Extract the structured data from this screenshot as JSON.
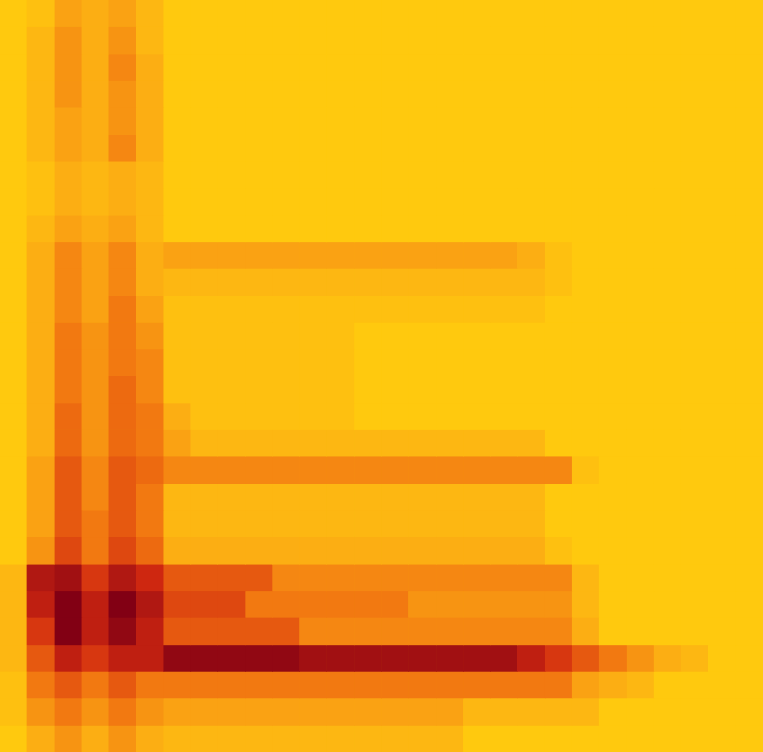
{
  "chart_data": {
    "type": "heatmap",
    "tick_labels": false,
    "grid": false,
    "cells": [
      [
        0.5,
        1,
        2.5,
        2,
        2.5,
        1.5,
        0.5,
        0.5,
        0.5,
        0.5,
        0.5,
        0.5,
        0.5,
        0.5,
        0.5,
        0.5,
        0.5,
        0.5,
        0.5,
        0.5,
        0.5,
        0.5,
        0.5,
        0.5,
        0.5,
        0.5,
        0.5,
        0.5
      ],
      [
        0.5,
        1.5,
        3,
        2,
        3,
        1.5,
        0.5,
        0.5,
        0.5,
        0.5,
        0.5,
        0.5,
        0.5,
        0.5,
        0.5,
        0.5,
        0.5,
        0.5,
        0.5,
        0.5,
        0.5,
        0.5,
        0.5,
        0.5,
        0.5,
        0.5,
        0.5,
        0.5
      ],
      [
        0.5,
        1.5,
        3,
        2,
        3.5,
        2,
        0.5,
        0.5,
        0.5,
        0.5,
        0.5,
        0.5,
        0.5,
        0.5,
        0.5,
        0.5,
        0.5,
        0.5,
        0.5,
        0.5,
        0.5,
        0.5,
        0.5,
        0.5,
        0.5,
        0.5,
        0.5,
        0.5
      ],
      [
        0.5,
        1.5,
        3,
        2,
        3,
        2,
        0.5,
        0.5,
        0.5,
        0.5,
        0.5,
        0.5,
        0.5,
        0.5,
        0.5,
        0.5,
        0.5,
        0.5,
        0.5,
        0.5,
        0.5,
        0.5,
        0.5,
        0.5,
        0.5,
        0.5,
        0.5,
        0.5
      ],
      [
        0.5,
        1.5,
        2.5,
        2,
        3,
        2,
        0.5,
        0.5,
        0.5,
        0.5,
        0.5,
        0.5,
        0.5,
        0.5,
        0.5,
        0.5,
        0.5,
        0.5,
        0.5,
        0.5,
        0.5,
        0.5,
        0.5,
        0.5,
        0.5,
        0.5,
        0.5,
        0.5
      ],
      [
        0.5,
        1.5,
        2.5,
        2,
        3.5,
        2,
        0.5,
        0.5,
        0.5,
        0.5,
        0.5,
        0.5,
        0.5,
        0.5,
        0.5,
        0.5,
        0.5,
        0.5,
        0.5,
        0.5,
        0.5,
        0.5,
        0.5,
        0.5,
        0.5,
        0.5,
        0.5,
        0.5
      ],
      [
        0.5,
        1,
        2,
        1.5,
        2,
        1.5,
        0.5,
        0.5,
        0.5,
        0.5,
        0.5,
        0.5,
        0.5,
        0.5,
        0.5,
        0.5,
        0.5,
        0.5,
        0.5,
        0.5,
        0.5,
        0.5,
        0.5,
        0.5,
        0.5,
        0.5,
        0.5,
        0.5
      ],
      [
        0.5,
        1,
        2,
        1.5,
        2,
        1.5,
        0.5,
        0.5,
        0.5,
        0.5,
        0.5,
        0.5,
        0.5,
        0.5,
        0.5,
        0.5,
        0.5,
        0.5,
        0.5,
        0.5,
        0.5,
        0.5,
        0.5,
        0.5,
        0.5,
        0.5,
        0.5,
        0.5
      ],
      [
        0.5,
        1.5,
        2.5,
        2,
        2.5,
        1.5,
        0.5,
        0.5,
        0.5,
        0.5,
        0.5,
        0.5,
        0.5,
        0.5,
        0.5,
        0.5,
        0.5,
        0.5,
        0.5,
        0.5,
        0.5,
        0.5,
        0.5,
        0.5,
        0.5,
        0.5,
        0.5,
        0.5
      ],
      [
        0.5,
        2,
        3.5,
        2.5,
        3.5,
        2,
        2.5,
        2.5,
        2.5,
        2.5,
        2.5,
        2.5,
        2.5,
        2.5,
        2.5,
        2.5,
        2.5,
        2.5,
        2.5,
        2,
        1,
        0.5,
        0.5,
        0.5,
        0.5,
        0.5,
        0.5,
        0.5
      ],
      [
        0.5,
        2,
        3.5,
        2.5,
        3.5,
        2,
        1.5,
        1.5,
        1.5,
        1.5,
        1.5,
        1.5,
        1.5,
        1.5,
        1.5,
        1.5,
        1.5,
        1.5,
        1.5,
        1.5,
        1,
        0.5,
        0.5,
        0.5,
        0.5,
        0.5,
        0.5,
        0.5
      ],
      [
        0.5,
        2,
        3.5,
        2.5,
        4,
        2.5,
        1,
        1,
        1,
        1,
        1,
        1,
        1,
        1,
        1,
        1,
        1,
        1,
        1,
        1,
        0.5,
        0.5,
        0.5,
        0.5,
        0.5,
        0.5,
        0.5,
        0.5
      ],
      [
        0.5,
        2,
        4,
        3,
        4,
        3,
        1,
        1,
        1,
        1,
        1,
        1,
        1,
        0.5,
        0.5,
        0.5,
        0.5,
        0.5,
        0.5,
        0.5,
        0.5,
        0.5,
        0.5,
        0.5,
        0.5,
        0.5,
        0.5,
        0.5
      ],
      [
        0.5,
        2,
        4,
        3,
        4,
        3.5,
        1,
        1,
        1,
        1,
        1,
        1,
        1,
        0.5,
        0.5,
        0.5,
        0.5,
        0.5,
        0.5,
        0.5,
        0.5,
        0.5,
        0.5,
        0.5,
        0.5,
        0.5,
        0.5,
        0.5
      ],
      [
        0.5,
        2,
        4,
        3,
        4.5,
        3.5,
        1,
        1,
        1,
        1,
        1,
        1,
        1,
        0.5,
        0.5,
        0.5,
        0.5,
        0.5,
        0.5,
        0.5,
        0.5,
        0.5,
        0.5,
        0.5,
        0.5,
        0.5,
        0.5,
        0.5
      ],
      [
        0.5,
        2,
        4.5,
        3,
        4.5,
        4,
        2,
        1,
        1,
        1,
        1,
        1,
        1,
        0.5,
        0.5,
        0.5,
        0.5,
        0.5,
        0.5,
        0.5,
        0.5,
        0.5,
        0.5,
        0.5,
        0.5,
        0.5,
        0.5,
        0.5
      ],
      [
        0.5,
        2,
        4.5,
        3,
        4.5,
        4,
        2.5,
        1.5,
        1.5,
        1.5,
        1.5,
        1.5,
        1.5,
        1.5,
        1.5,
        1.5,
        1.5,
        1.5,
        1.5,
        1.5,
        0.5,
        0.5,
        0.5,
        0.5,
        0.5,
        0.5,
        0.5,
        0.5
      ],
      [
        0.5,
        2.5,
        5,
        3.5,
        5,
        4.5,
        3.5,
        3.5,
        3.5,
        3.5,
        3.5,
        3.5,
        3.5,
        3.5,
        3.5,
        3.5,
        3.5,
        3.5,
        3.5,
        3.5,
        3.5,
        1,
        0.5,
        0.5,
        0.5,
        0.5,
        0.5,
        0.5
      ],
      [
        0.5,
        2.5,
        5,
        3.5,
        5,
        4,
        1.5,
        1.5,
        1.5,
        1.5,
        1.5,
        1.5,
        1.5,
        1.5,
        1.5,
        1.5,
        1.5,
        1.5,
        1.5,
        1.5,
        0.5,
        0.5,
        0.5,
        0.5,
        0.5,
        0.5,
        0.5,
        0.5
      ],
      [
        0.5,
        2.5,
        5,
        4,
        5,
        4,
        1.5,
        1.5,
        1.5,
        1.5,
        1.5,
        1.5,
        1.5,
        1.5,
        1.5,
        1.5,
        1.5,
        1.5,
        1.5,
        1.5,
        0.5,
        0.5,
        0.5,
        0.5,
        0.5,
        0.5,
        0.5,
        0.5
      ],
      [
        0.5,
        3,
        5.5,
        4,
        5.5,
        4.5,
        2,
        2,
        2,
        2,
        2,
        2,
        2,
        2,
        2,
        2,
        2,
        2,
        2,
        2,
        1,
        0.5,
        0.5,
        0.5,
        0.5,
        0.5,
        0.5,
        0.5
      ],
      [
        1.5,
        7.5,
        8,
        6,
        7.5,
        6.5,
        5,
        5,
        5,
        5,
        3.5,
        3.5,
        3.5,
        3.5,
        3.5,
        3.5,
        3.5,
        3.5,
        3.5,
        3.5,
        3.5,
        1.5,
        0.5,
        0.5,
        0.5,
        0.5,
        0.5,
        0.5
      ],
      [
        1.5,
        7,
        9,
        7,
        9,
        7.5,
        5.5,
        5.5,
        5.5,
        4,
        4,
        4,
        4,
        4,
        4,
        3,
        3,
        3,
        3,
        3,
        3,
        1.5,
        0.5,
        0.5,
        0.5,
        0.5,
        0.5,
        0.5
      ],
      [
        1.5,
        6,
        9,
        7,
        8.5,
        7,
        5,
        5,
        5,
        5,
        5,
        3.5,
        3.5,
        3.5,
        3.5,
        3.5,
        3.5,
        3.5,
        3.5,
        3.5,
        3.5,
        2,
        0.5,
        0.5,
        0.5,
        0.5,
        0.5,
        0.5
      ],
      [
        1.5,
        5,
        7,
        6,
        7,
        7,
        8.5,
        8.5,
        8.5,
        8.5,
        8.5,
        8,
        8,
        8,
        8,
        8,
        8,
        8,
        8,
        7,
        6,
        5,
        4,
        3,
        2,
        1.5,
        0.5,
        0.5
      ],
      [
        1,
        4,
        5,
        4,
        5,
        4,
        4,
        4,
        4,
        4,
        4,
        4,
        4,
        4,
        4,
        4,
        4,
        4,
        4,
        4,
        4,
        2.5,
        2,
        1.5,
        0.5,
        0.5,
        0.5,
        0.5
      ],
      [
        1,
        3,
        4,
        3,
        4,
        3,
        2.5,
        2.5,
        2.5,
        2.5,
        2.5,
        2.5,
        2.5,
        2.5,
        2.5,
        2.5,
        2.5,
        1.5,
        1.5,
        1.5,
        1.5,
        1.5,
        0.5,
        0.5,
        0.5,
        0.5,
        0.5,
        0.5
      ],
      [
        0.5,
        2,
        3,
        2,
        3,
        2,
        1.5,
        1.5,
        1.5,
        1.5,
        1.5,
        1.5,
        1.5,
        1.5,
        1.5,
        1.5,
        1.5,
        0.5,
        0.5,
        0.5,
        0.5,
        0.5,
        0.5,
        0.5,
        0.5,
        0.5,
        0.5,
        0.5
      ]
    ]
  }
}
